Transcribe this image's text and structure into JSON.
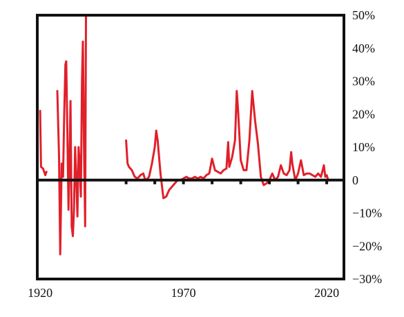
{
  "chart_data": {
    "type": "line",
    "title": "",
    "xlabel": "",
    "ylabel": "",
    "xlim": [
      1919,
      2026
    ],
    "ylim": [
      -30,
      50
    ],
    "x_ticks": [
      {
        "value": 1920,
        "label": "1920"
      },
      {
        "value": 1970,
        "label": "1970"
      },
      {
        "value": 2020,
        "label": "2020"
      }
    ],
    "y_ticks": [
      {
        "value": 50,
        "label": "50%"
      },
      {
        "value": 40,
        "label": "40%"
      },
      {
        "value": 30,
        "label": "30%"
      },
      {
        "value": 20,
        "label": "20%"
      },
      {
        "value": 10,
        "label": "10%"
      },
      {
        "value": 0,
        "label": "0"
      },
      {
        "value": -10,
        "label": "−10%"
      },
      {
        "value": -20,
        "label": "−20%"
      },
      {
        "value": -30,
        "label": "−30%"
      }
    ],
    "zero_line_minor_ticks": [
      1950,
      1960,
      1970,
      1980,
      1990,
      2000,
      2010,
      2020
    ],
    "grid": false,
    "legend": "none",
    "line_color": "#e0202a",
    "series": [
      {
        "segments": [
          [
            [
              1920,
              21
            ],
            [
              1920.3,
              4
            ],
            [
              1921,
              3.5
            ],
            [
              1921.8,
              1.5
            ],
            [
              1922.2,
              2.5
            ]
          ],
          [
            [
              1926,
              27
            ],
            [
              1926.6,
              7
            ],
            [
              1927,
              -22.5
            ],
            [
              1927.5,
              5
            ],
            [
              1928,
              1
            ],
            [
              1928.4,
              20
            ],
            [
              1928.8,
              35
            ],
            [
              1929.1,
              36
            ],
            [
              1929.5,
              14
            ],
            [
              1929.9,
              -9
            ],
            [
              1930.2,
              4
            ],
            [
              1930.6,
              24
            ],
            [
              1931,
              -14
            ],
            [
              1931.4,
              -17
            ],
            [
              1931.8,
              -9
            ],
            [
              1932.2,
              10
            ],
            [
              1932.6,
              1
            ],
            [
              1933,
              -11
            ],
            [
              1933.4,
              10
            ],
            [
              1933.8,
              5
            ],
            [
              1934.2,
              -5
            ],
            [
              1934.6,
              30
            ],
            [
              1934.9,
              42
            ],
            [
              1935.3,
              11
            ],
            [
              1935.7,
              -14
            ],
            [
              1936,
              50
            ]
          ],
          [
            [
              1950,
              12
            ],
            [
              1950.5,
              5
            ],
            [
              1951,
              4
            ],
            [
              1952,
              3
            ],
            [
              1953,
              1
            ],
            [
              1954,
              0.5
            ],
            [
              1955,
              1.5
            ],
            [
              1956,
              2
            ],
            [
              1956.5,
              0.5
            ],
            [
              1957,
              0
            ],
            [
              1958,
              1
            ],
            [
              1959,
              5
            ],
            [
              1960,
              10
            ],
            [
              1960.5,
              15
            ],
            [
              1961,
              12
            ],
            [
              1962,
              2
            ],
            [
              1963,
              -5.5
            ],
            [
              1964,
              -5
            ],
            [
              1965,
              -3
            ],
            [
              1966,
              -2
            ],
            [
              1967,
              -1
            ],
            [
              1968,
              0
            ],
            [
              1969,
              0
            ],
            [
              1970,
              0.5
            ],
            [
              1971,
              1
            ],
            [
              1972,
              0.5
            ],
            [
              1973,
              0.5
            ],
            [
              1974,
              1
            ],
            [
              1975,
              0.5
            ],
            [
              1976,
              1
            ],
            [
              1977,
              0.5
            ],
            [
              1978,
              1.5
            ],
            [
              1979,
              2
            ],
            [
              1980,
              6.5
            ],
            [
              1981,
              3
            ],
            [
              1982,
              2.5
            ],
            [
              1983,
              2
            ],
            [
              1984,
              3
            ],
            [
              1985,
              3.5
            ],
            [
              1985.6,
              11.5
            ],
            [
              1986,
              4
            ],
            [
              1987,
              7
            ],
            [
              1988,
              12
            ],
            [
              1988.6,
              27
            ],
            [
              1989,
              22
            ],
            [
              1990,
              6
            ],
            [
              1991,
              3
            ],
            [
              1992,
              3
            ],
            [
              1993,
              12
            ],
            [
              1994,
              27
            ],
            [
              1995,
              18
            ],
            [
              1996,
              11
            ],
            [
              1997,
              1
            ],
            [
              1998,
              -1.5
            ],
            [
              1999,
              -1
            ],
            [
              2000,
              0
            ],
            [
              2001,
              2
            ],
            [
              2002,
              0
            ],
            [
              2003,
              1
            ],
            [
              2004,
              4.5
            ],
            [
              2005,
              2
            ],
            [
              2006,
              1.5
            ],
            [
              2007,
              3
            ],
            [
              2007.6,
              8.5
            ],
            [
              2008,
              5
            ],
            [
              2009,
              0
            ],
            [
              2010,
              2
            ],
            [
              2011,
              6
            ],
            [
              2012,
              1.5
            ],
            [
              2013,
              2
            ],
            [
              2014,
              2
            ],
            [
              2015,
              1.5
            ],
            [
              2016,
              1
            ],
            [
              2017,
              2
            ],
            [
              2018,
              1
            ],
            [
              2019,
              4.5
            ],
            [
              2019.5,
              1
            ],
            [
              2020,
              1.5
            ],
            [
              2020.5,
              0
            ]
          ]
        ]
      }
    ]
  }
}
